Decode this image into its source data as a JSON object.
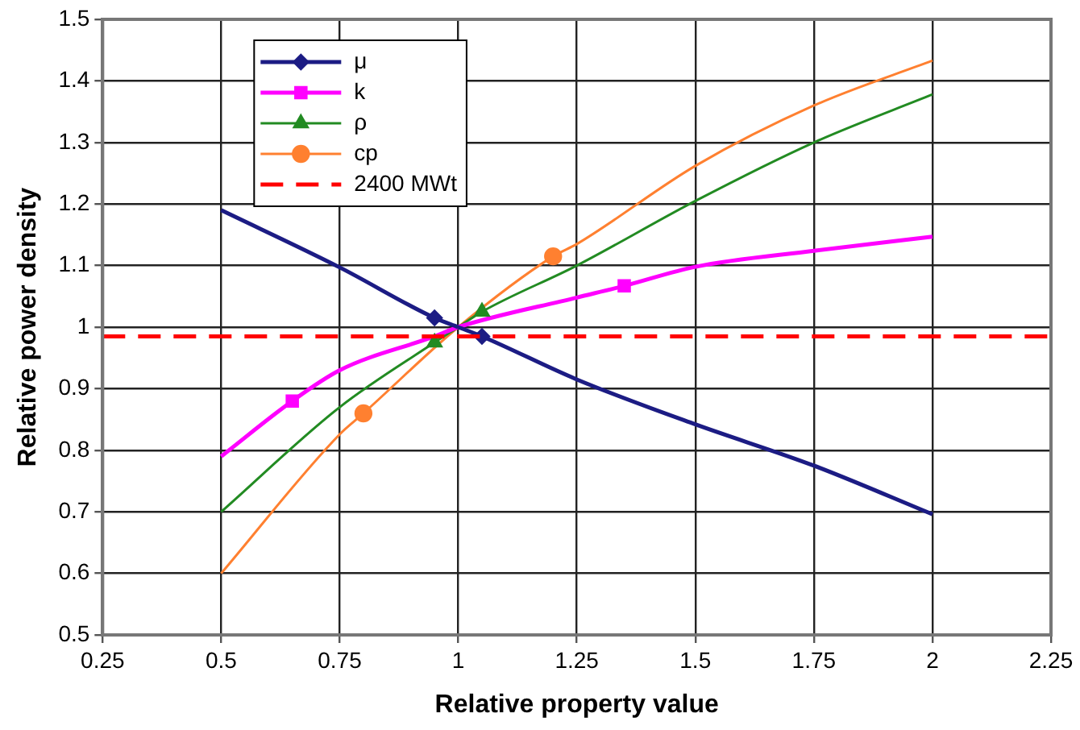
{
  "chart_data": {
    "type": "line",
    "xlabel": "Relative property value",
    "ylabel": "Relative power density",
    "xlim": [
      0.25,
      2.25
    ],
    "xticks": [
      0.25,
      0.5,
      0.75,
      1,
      1.25,
      1.5,
      1.75,
      2,
      2.25
    ],
    "ylim": [
      0.5,
      1.5
    ],
    "yticks": [
      0.5,
      0.6,
      0.7,
      0.8,
      0.9,
      1,
      1.1,
      1.2,
      1.3,
      1.4,
      1.5
    ],
    "grid": true,
    "legend": "top left",
    "line_style": "solid",
    "series": [
      {
        "name": "μ",
        "type": "line",
        "color": "#1c1c84",
        "x": [
          0.5,
          0.75,
          0.95,
          1,
          1.05,
          1.25,
          1.5,
          1.75,
          2
        ],
        "values": [
          1.19,
          1.097,
          1.015,
          1.0,
          0.985,
          0.915,
          0.842,
          0.775,
          0.696
        ]
      },
      {
        "name": "k",
        "type": "line",
        "color": "#ff00ff",
        "x": [
          0.5,
          0.65,
          0.75,
          0.95,
          1,
          1.25,
          1.35,
          1.5,
          1.75,
          2
        ],
        "values": [
          0.79,
          0.88,
          0.93,
          0.985,
          1.0,
          1.048,
          1.067,
          1.098,
          1.124,
          1.147
        ]
      },
      {
        "name": "ρ",
        "type": "line",
        "color": "#228b22",
        "x": [
          0.5,
          0.75,
          0.95,
          1,
          1.05,
          1.25,
          1.5,
          1.75,
          2
        ],
        "values": [
          0.7,
          0.87,
          0.975,
          1.0,
          1.025,
          1.1,
          1.205,
          1.3,
          1.378
        ]
      },
      {
        "name": "cp",
        "type": "line",
        "color": "#ff8030",
        "x": [
          0.5,
          0.75,
          0.8,
          1,
          1.2,
          1.25,
          1.5,
          1.75,
          2
        ],
        "values": [
          0.6,
          0.826,
          0.86,
          1.0,
          1.115,
          1.135,
          1.262,
          1.36,
          1.433
        ]
      },
      {
        "type": "scatter",
        "color": "#1c1c84",
        "marker": "diamond",
        "x": [
          0.95,
          1.05
        ],
        "values": [
          1.015,
          0.985
        ]
      },
      {
        "type": "scatter",
        "color": "#ff00ff",
        "marker": "square",
        "x": [
          0.65,
          1.35
        ],
        "values": [
          0.88,
          1.067
        ]
      },
      {
        "type": "scatter",
        "color": "#228b22",
        "marker": "triangle",
        "x": [
          0.95,
          1.05
        ],
        "values": [
          0.975,
          1.025
        ]
      },
      {
        "type": "scatter",
        "color": "#ff8030",
        "marker": "circle",
        "x": [
          0.8,
          1.2
        ],
        "values": [
          0.86,
          1.115
        ]
      }
    ],
    "ref_lines": [
      {
        "axis": "y",
        "value": 0.985,
        "label": "2400 MWt",
        "color": "#ff0000",
        "line_style": "dashed"
      }
    ]
  }
}
